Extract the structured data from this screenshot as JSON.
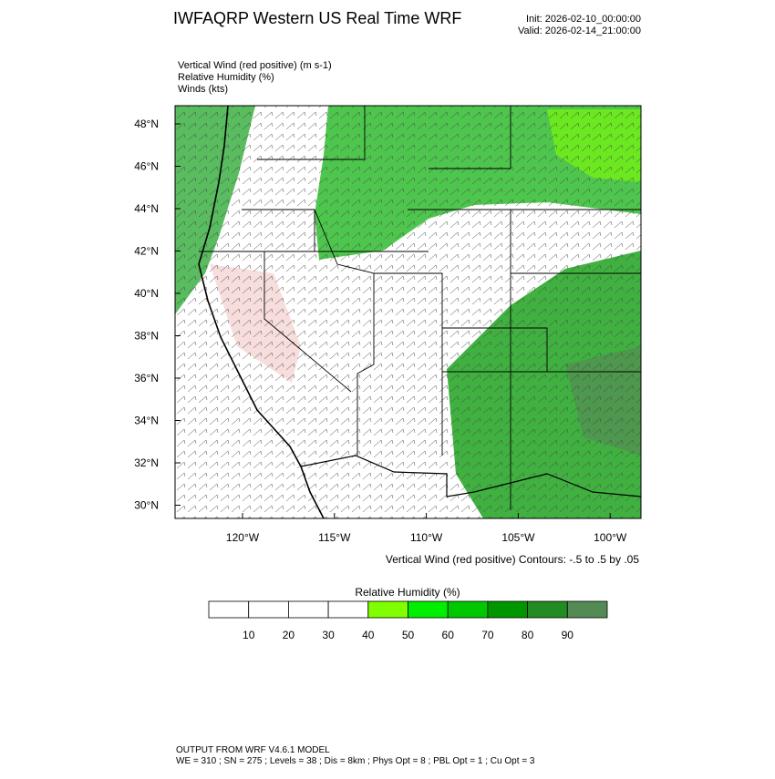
{
  "header": {
    "title": "IWFAQRP Western US Real Time WRF",
    "init": "Init: 2026-02-10_00:00:00",
    "valid": "Valid: 2026-02-14_21:00:00"
  },
  "fields": [
    "Vertical Wind (red positive)   (m s-1)",
    "Relative Humidity   (%)",
    "Winds   (kts)"
  ],
  "map": {
    "lat_ticks": [
      {
        "value": 48,
        "label": "48°N"
      },
      {
        "value": 46,
        "label": "46°N"
      },
      {
        "value": 44,
        "label": "44°N"
      },
      {
        "value": 42,
        "label": "42°N"
      },
      {
        "value": 40,
        "label": "40°N"
      },
      {
        "value": 38,
        "label": "38°N"
      },
      {
        "value": 36,
        "label": "36°N"
      },
      {
        "value": 34,
        "label": "34°N"
      },
      {
        "value": 32,
        "label": "32°N"
      },
      {
        "value": 30,
        "label": "30°N"
      }
    ],
    "lon_ticks": [
      {
        "value": -120,
        "label": "120°W"
      },
      {
        "value": -115,
        "label": "115°W"
      },
      {
        "value": -110,
        "label": "110°W"
      },
      {
        "value": -105,
        "label": "105°W"
      },
      {
        "value": -100,
        "label": "100°W"
      }
    ],
    "contour_note": "Vertical Wind (red positive) Contours: -.5 to .5 by .05"
  },
  "colorbar": {
    "title": "Relative Humidity  (%)",
    "levels": [
      10,
      20,
      30,
      40,
      50,
      60,
      70,
      80,
      90
    ],
    "colors": [
      "#ffffff",
      "#ffffff",
      "#ffffff",
      "#ffffff",
      "#7fff00",
      "#00ee00",
      "#00c800",
      "#009600",
      "#228b22",
      "#548b54"
    ]
  },
  "footer": {
    "line1": "OUTPUT FROM WRF V4.6.1 MODEL",
    "line2": "WE = 310 ; SN = 275 ; Levels = 38 ; Dis = 8km ; Phys Opt = 8 ; PBL Opt = 1 ; Cu Opt = 3"
  }
}
